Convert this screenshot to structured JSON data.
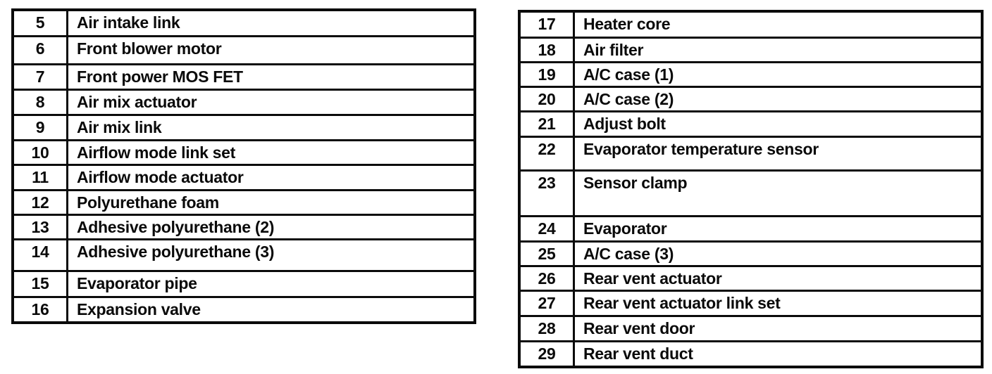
{
  "left_table": {
    "rows": [
      {
        "num": "5",
        "label": "Air intake link"
      },
      {
        "num": "6",
        "label": "Front blower motor"
      },
      {
        "num": "7",
        "label": "Front power MOS FET"
      },
      {
        "num": "8",
        "label": "Air mix actuator"
      },
      {
        "num": "9",
        "label": "Air mix link"
      },
      {
        "num": "10",
        "label": "Airflow mode link set"
      },
      {
        "num": "11",
        "label": "Airflow mode actuator"
      },
      {
        "num": "12",
        "label": "Polyurethane foam"
      },
      {
        "num": "13",
        "label": "Adhesive polyurethane (2)"
      },
      {
        "num": "14",
        "label": "Adhesive polyurethane (3)"
      },
      {
        "num": "15",
        "label": "Evaporator pipe"
      },
      {
        "num": "16",
        "label": "Expansion valve"
      }
    ]
  },
  "right_table": {
    "rows": [
      {
        "num": "17",
        "label": "Heater core"
      },
      {
        "num": "18",
        "label": "Air filter"
      },
      {
        "num": "19",
        "label": "A/C case (1)"
      },
      {
        "num": "20",
        "label": "A/C case (2)"
      },
      {
        "num": "21",
        "label": "Adjust bolt"
      },
      {
        "num": "22",
        "label": "Evaporator temperature sensor"
      },
      {
        "num": "23",
        "label": "Sensor clamp"
      },
      {
        "num": "24",
        "label": "Evaporator"
      },
      {
        "num": "25",
        "label": "A/C case (3)"
      },
      {
        "num": "26",
        "label": "Rear vent actuator"
      },
      {
        "num": "27",
        "label": "Rear vent actuator link set"
      },
      {
        "num": "28",
        "label": "Rear vent door"
      },
      {
        "num": "29",
        "label": "Rear vent duct"
      }
    ]
  }
}
